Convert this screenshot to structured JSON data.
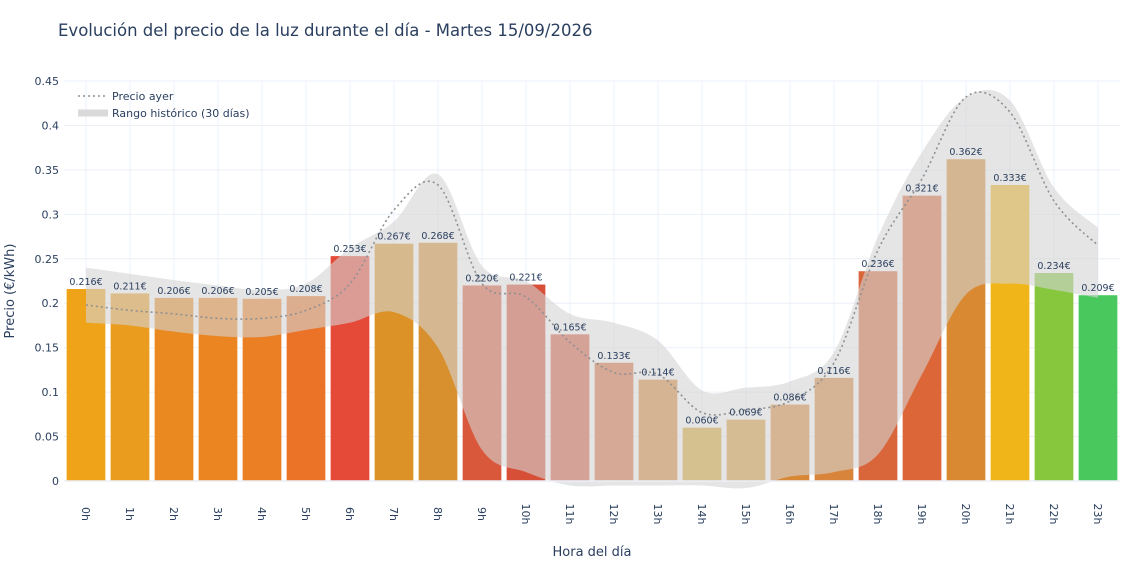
{
  "title": "Evolución del precio de la luz durante el día - Martes 15/09/2026",
  "chart_data": {
    "type": "bar",
    "title": "Evolución del precio de la luz durante el día - Martes 15/09/2026",
    "xlabel": "Hora del día",
    "ylabel": "Precio (€/kWh)",
    "ylim": [
      0,
      0.45
    ],
    "yticks": [
      0,
      0.05,
      0.1,
      0.15,
      0.2,
      0.25,
      0.3,
      0.35,
      0.4,
      0.45
    ],
    "ytick_labels": [
      "0",
      "0.05",
      "0.1",
      "0.15",
      "0.2",
      "0.25",
      "0.3",
      "0.35",
      "0.4",
      "0.45"
    ],
    "grid": true,
    "legend_position": "top-left",
    "categories": [
      "0h",
      "1h",
      "2h",
      "3h",
      "4h",
      "5h",
      "6h",
      "7h",
      "8h",
      "9h",
      "10h",
      "11h",
      "12h",
      "13h",
      "14h",
      "15h",
      "16h",
      "17h",
      "18h",
      "19h",
      "20h",
      "21h",
      "22h",
      "23h"
    ],
    "series": [
      {
        "kind": "bar",
        "values": [
          0.216,
          0.211,
          0.206,
          0.206,
          0.205,
          0.208,
          0.253,
          0.267,
          0.268,
          0.22,
          0.221,
          0.165,
          0.133,
          0.114,
          0.06,
          0.069,
          0.086,
          0.116,
          0.236,
          0.321,
          0.362,
          0.333,
          0.234,
          0.209
        ],
        "labels": [
          "0.216€",
          "0.211€",
          "0.206€",
          "0.206€",
          "0.205€",
          "0.208€",
          "0.253€",
          "0.267€",
          "0.268€",
          "0.220€",
          "0.221€",
          "0.165€",
          "0.133€",
          "0.114€",
          "0.060€",
          "0.069€",
          "0.086€",
          "0.116€",
          "0.236€",
          "0.321€",
          "0.362€",
          "0.333€",
          "0.234€",
          "0.209€"
        ],
        "colors": [
          "#efa318",
          "#ea9c1e",
          "#e9891f",
          "#ea8522",
          "#ea7f24",
          "#ea7328",
          "#e54a38",
          "#dd9227",
          "#d88f2e",
          "#d9573b",
          "#d84f38",
          "#d5573b",
          "#d76a38",
          "#d88436",
          "#d8a52a",
          "#d79932",
          "#d88734",
          "#d8843a",
          "#d8663a",
          "#dd6638",
          "#d88931",
          "#efb519",
          "#86c73e",
          "#49c95d"
        ]
      },
      {
        "kind": "line",
        "name": "Precio ayer",
        "style": "dotted",
        "color": "#8f9092",
        "values": [
          0.198,
          0.192,
          0.188,
          0.183,
          0.183,
          0.192,
          0.222,
          0.305,
          0.333,
          0.222,
          0.207,
          0.156,
          0.122,
          0.12,
          0.077,
          0.08,
          0.09,
          0.133,
          0.26,
          0.34,
          0.432,
          0.415,
          0.315,
          0.265
        ]
      },
      {
        "kind": "band",
        "name": "Rango histórico (30 días)",
        "color": "#d4d4d4",
        "upper": [
          0.24,
          0.233,
          0.226,
          0.22,
          0.215,
          0.222,
          0.262,
          0.292,
          0.345,
          0.242,
          0.225,
          0.188,
          0.178,
          0.158,
          0.102,
          0.105,
          0.112,
          0.145,
          0.275,
          0.37,
          0.432,
          0.428,
          0.33,
          0.285
        ],
        "lower": [
          0.178,
          0.175,
          0.168,
          0.163,
          0.162,
          0.17,
          0.178,
          0.19,
          0.15,
          0.035,
          0.01,
          -0.005,
          -0.005,
          -0.005,
          -0.005,
          -0.008,
          0.005,
          0.01,
          0.03,
          0.12,
          0.21,
          0.222,
          0.215,
          0.206
        ]
      }
    ]
  }
}
